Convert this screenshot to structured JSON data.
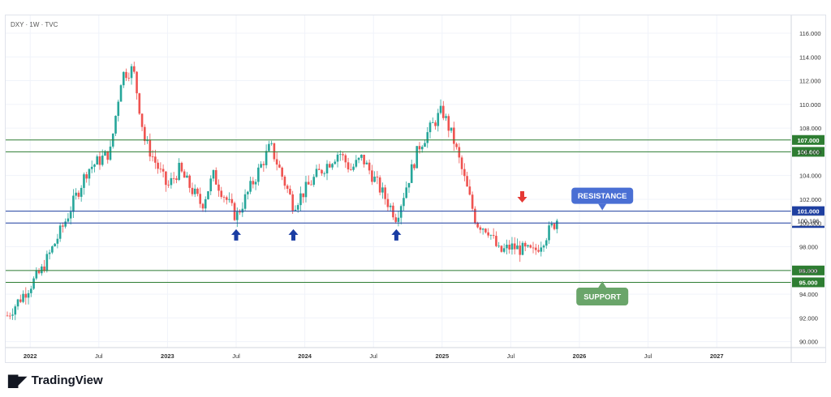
{
  "symbol": "DXY · 1W · TVC",
  "brand": "TradingView",
  "brand_icon": "tradingview-logo-icon",
  "colors": {
    "up": "#26a69a",
    "down": "#ef5350",
    "support": "#2e7d32",
    "resistance": "#1e3fa0",
    "resistance_callout": "#4a6fd4",
    "support_callout": "#6aa56a",
    "arrow_blue": "#1a3da3",
    "arrow_red": "#e53935"
  },
  "chart_data": {
    "type": "candlestick",
    "ylim": [
      89.5,
      117.5
    ],
    "y_ticks": [
      "116.000",
      "114.000",
      "112.000",
      "110.000",
      "108.000",
      "106.000",
      "104.000",
      "102.000",
      "100.000",
      "98.000",
      "96.000",
      "94.000",
      "92.000",
      "90.000"
    ],
    "x_ticks": [
      "2022",
      "Jul",
      "2023",
      "Jul",
      "2024",
      "Jul",
      "2025",
      "Jul",
      "2026",
      "Jul",
      "2027"
    ],
    "current_price": "100.196",
    "horizontal_levels": [
      {
        "price": 107.0,
        "label": "107.000",
        "kind": "support"
      },
      {
        "price": 106.0,
        "label": "106.000",
        "kind": "support"
      },
      {
        "price": 101.0,
        "label": "101.000",
        "kind": "resistance"
      },
      {
        "price": 100.0,
        "label": "100.000",
        "kind": "resistance"
      },
      {
        "price": 96.0,
        "label": "96.000",
        "kind": "support"
      },
      {
        "price": 95.0,
        "label": "95.000",
        "kind": "support"
      }
    ],
    "callouts": {
      "resistance": "RESISTANCE",
      "support": "SUPPORT"
    },
    "anchors": [
      {
        "date": "2021-11",
        "price": 92.2
      },
      {
        "date": "2022-02",
        "price": 96.0
      },
      {
        "date": "2022-04",
        "price": 100.0
      },
      {
        "date": "2022-06",
        "price": 104.5
      },
      {
        "date": "2022-08",
        "price": 106.0
      },
      {
        "date": "2022-09",
        "price": 112.5
      },
      {
        "date": "2022-10",
        "price": 113.0
      },
      {
        "date": "2022-11",
        "price": 107.0
      },
      {
        "date": "2023-01",
        "price": 103.0
      },
      {
        "date": "2023-02",
        "price": 104.5
      },
      {
        "date": "2023-04",
        "price": 101.5
      },
      {
        "date": "2023-05",
        "price": 104.0
      },
      {
        "date": "2023-07",
        "price": 100.5
      },
      {
        "date": "2023-10",
        "price": 106.5
      },
      {
        "date": "2023-12",
        "price": 101.5
      },
      {
        "date": "2024-02",
        "price": 104.0
      },
      {
        "date": "2024-04",
        "price": 106.0
      },
      {
        "date": "2024-05",
        "price": 104.5
      },
      {
        "date": "2024-06",
        "price": 105.5
      },
      {
        "date": "2024-09",
        "price": 100.5
      },
      {
        "date": "2024-11",
        "price": 106.5
      },
      {
        "date": "2025-01",
        "price": 109.5
      },
      {
        "date": "2025-02",
        "price": 107.0
      },
      {
        "date": "2025-04",
        "price": 100.0
      },
      {
        "date": "2025-05",
        "price": 99.5
      },
      {
        "date": "2025-06",
        "price": 97.5
      },
      {
        "date": "2025-07",
        "price": 98.0
      },
      {
        "date": "2025-09",
        "price": 97.5
      },
      {
        "date": "2025-11",
        "price": 100.2
      }
    ],
    "markers": [
      {
        "type": "up-arrow",
        "date": "2023-07",
        "price": 99.0
      },
      {
        "type": "up-arrow",
        "date": "2023-12",
        "price": 99.0
      },
      {
        "type": "up-arrow",
        "date": "2024-09",
        "price": 99.0
      },
      {
        "type": "down-arrow",
        "date": "2025-08",
        "price": 102.2
      }
    ]
  }
}
